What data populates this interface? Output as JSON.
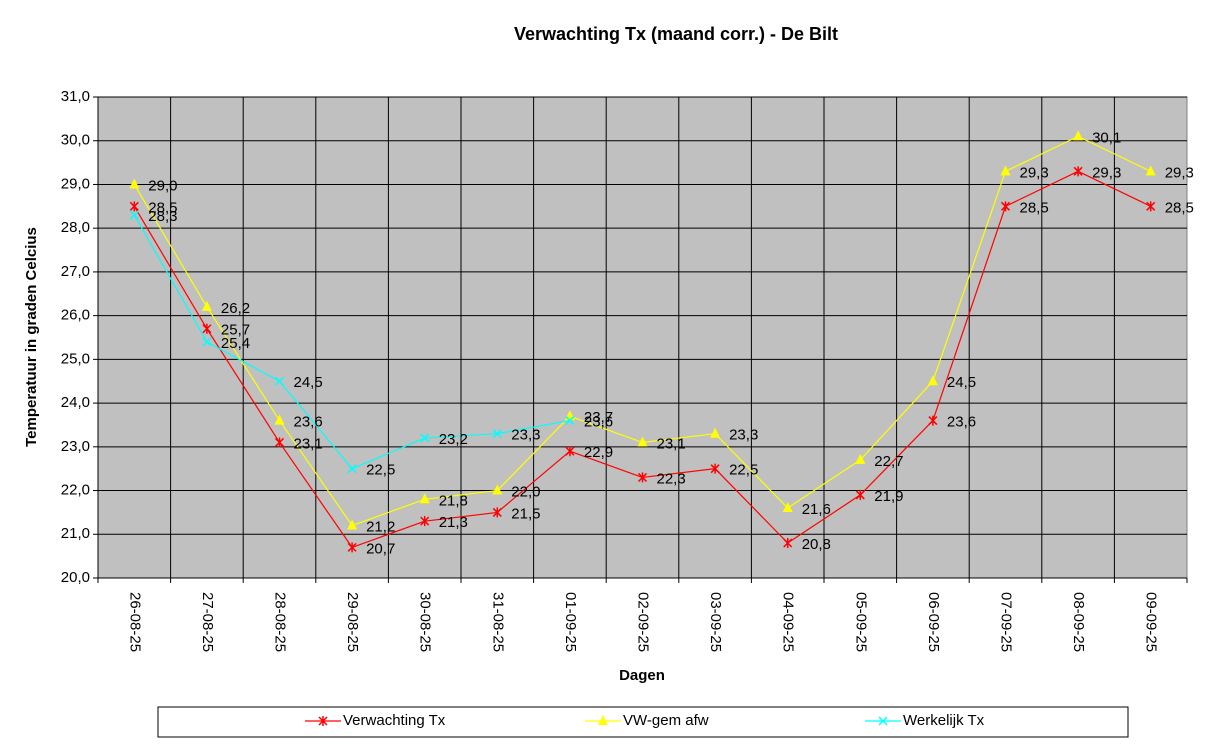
{
  "chart_data": {
    "type": "line",
    "title": "Verwachting Tx (maand corr.) - De Bilt",
    "x_label": "Dagen",
    "y_label": "Temperatuur in graden Celcius",
    "categories": [
      "26-08-25",
      "27-08-25",
      "28-08-25",
      "29-08-25",
      "30-08-25",
      "31-08-25",
      "01-09-25",
      "02-09-25",
      "03-09-25",
      "04-09-25",
      "05-09-25",
      "06-09-25",
      "07-09-25",
      "08-09-25",
      "09-09-25"
    ],
    "series": [
      {
        "name": "Verwachting Tx",
        "color": "#ff0000",
        "marker": "asterisk",
        "values": [
          28.5,
          25.7,
          23.1,
          20.7,
          21.3,
          21.5,
          22.9,
          22.3,
          22.5,
          20.8,
          21.9,
          23.6,
          28.5,
          29.3,
          28.5
        ],
        "value_labels": [
          "28,5",
          "25,7",
          "23,1",
          "20,7",
          "21,3",
          "21,5",
          "22,9",
          "22,3",
          "22,5",
          "20,8",
          "21,9",
          "23,6",
          "28,5",
          "29,3",
          "28,5"
        ]
      },
      {
        "name": "VW-gem afw",
        "color": "#ffff00",
        "marker": "triangle",
        "values": [
          29.0,
          26.2,
          23.6,
          21.2,
          21.8,
          22.0,
          23.7,
          23.1,
          23.3,
          21.6,
          22.7,
          24.5,
          29.3,
          30.1,
          29.3
        ],
        "value_labels": [
          "29,0",
          "26,2",
          "23,6",
          "21,2",
          "21,8",
          "22,0",
          "23,7",
          "23,1",
          "23,3",
          "21,6",
          "22,7",
          "24,5",
          "29,3",
          "30,1",
          "29,3"
        ]
      },
      {
        "name": "Werkelijk Tx",
        "color": "#00ffff",
        "marker": "x",
        "values": [
          28.3,
          25.4,
          24.5,
          22.5,
          23.2,
          23.3,
          23.6,
          null,
          null,
          null,
          null,
          null,
          null,
          null,
          null
        ],
        "value_labels": [
          "28,3",
          "25,4",
          "24,5",
          "22,5",
          "23,2",
          "23,3",
          "23,6",
          null,
          null,
          null,
          null,
          null,
          null,
          null,
          null
        ]
      }
    ],
    "ylim": [
      20,
      31
    ],
    "yticks": [
      {
        "value": 20,
        "label": "20,0"
      },
      {
        "value": 21,
        "label": "21,0"
      },
      {
        "value": 22,
        "label": "22,0"
      },
      {
        "value": 23,
        "label": "23,0"
      },
      {
        "value": 24,
        "label": "24,0"
      },
      {
        "value": 25,
        "label": "25,0"
      },
      {
        "value": 26,
        "label": "26,0"
      },
      {
        "value": 27,
        "label": "27,0"
      },
      {
        "value": 28,
        "label": "28,0"
      },
      {
        "value": 29,
        "label": "29,0"
      },
      {
        "value": 30,
        "label": "30,0"
      },
      {
        "value": 31,
        "label": "31,0"
      }
    ],
    "grid": true,
    "legend": "bottom"
  }
}
